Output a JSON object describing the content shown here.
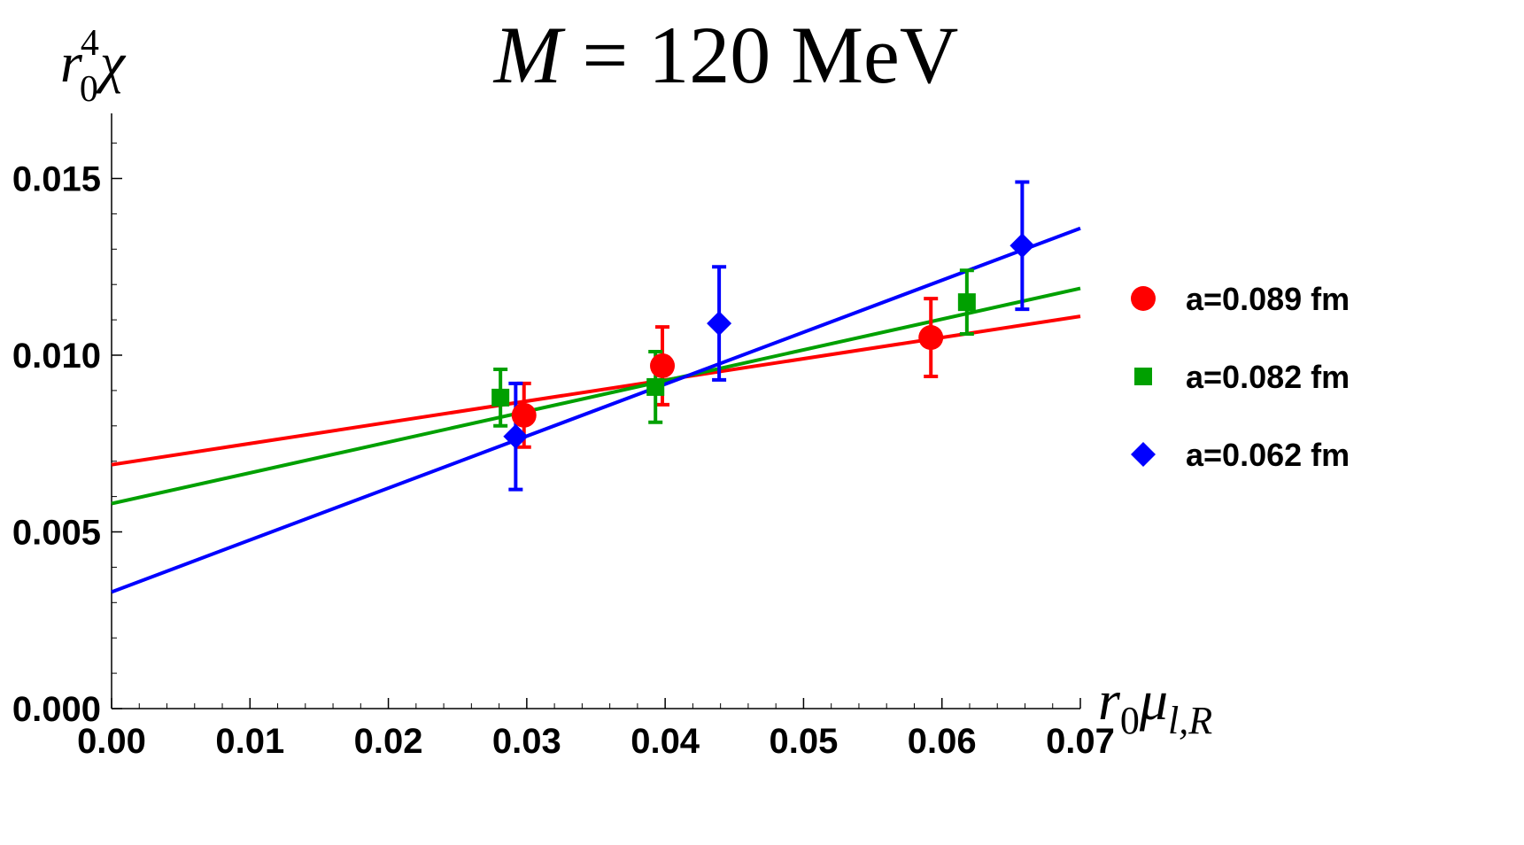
{
  "chart_data": {
    "type": "scatter",
    "title": {
      "var": "M",
      "eq": " = ",
      "value": "120 MeV",
      "full": "M = 120 MeV"
    },
    "xlabel": {
      "base": "r",
      "sub": "0",
      "symbol": "μ",
      "subscript": "l,R",
      "full": "r0μl,R"
    },
    "ylabel": {
      "base": "r",
      "sub": "0",
      "sup": "4",
      "symbol": "χ",
      "full": "r0^4χ"
    },
    "xlim": [
      0.0,
      0.07
    ],
    "ylim": [
      0.0,
      0.0168
    ],
    "x_ticks": [
      "0.00",
      "0.01",
      "0.02",
      "0.03",
      "0.04",
      "0.05",
      "0.06",
      "0.07"
    ],
    "y_ticks": [
      "0.000",
      "0.005",
      "0.010",
      "0.015"
    ],
    "x_tick_values": [
      0.0,
      0.01,
      0.02,
      0.03,
      0.04,
      0.05,
      0.06,
      0.07
    ],
    "y_tick_values": [
      0.0,
      0.005,
      0.01,
      0.015
    ],
    "grid": false,
    "legend_position": "right",
    "series": [
      {
        "name": "a=0.089 fm",
        "color": "#ff0000",
        "marker": "circle",
        "points": [
          {
            "x": 0.0298,
            "y": 0.0083,
            "err": 0.0009
          },
          {
            "x": 0.0398,
            "y": 0.0097,
            "err": 0.0011
          },
          {
            "x": 0.0592,
            "y": 0.0105,
            "err": 0.0011
          }
        ],
        "fit": {
          "intercept": 0.0069,
          "slope": 0.06
        }
      },
      {
        "name": "a=0.082 fm",
        "color": "#00a000",
        "marker": "square",
        "points": [
          {
            "x": 0.0281,
            "y": 0.0088,
            "err": 0.0008
          },
          {
            "x": 0.0393,
            "y": 0.0091,
            "err": 0.001
          },
          {
            "x": 0.0618,
            "y": 0.0115,
            "err": 0.0009
          }
        ],
        "fit": {
          "intercept": 0.0058,
          "slope": 0.087
        }
      },
      {
        "name": "a=0.062 fm",
        "color": "#0000ff",
        "marker": "diamond",
        "points": [
          {
            "x": 0.0292,
            "y": 0.0077,
            "err": 0.0015
          },
          {
            "x": 0.0439,
            "y": 0.0109,
            "err": 0.0016
          },
          {
            "x": 0.0658,
            "y": 0.0131,
            "err": 0.0018
          }
        ],
        "fit": {
          "intercept": 0.0033,
          "slope": 0.147
        }
      }
    ]
  }
}
